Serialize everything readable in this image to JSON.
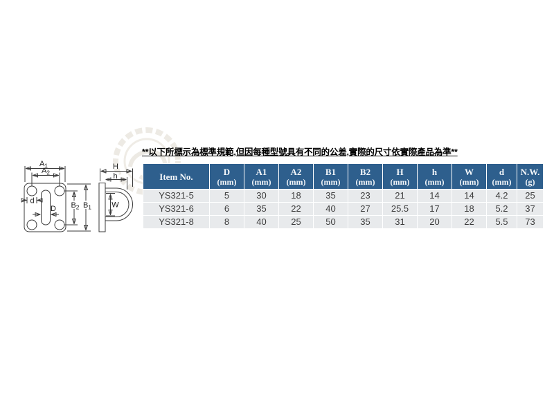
{
  "colors": {
    "header_bg": "#2e5f8d",
    "header_text": "#f4f7fa",
    "row_bg": "#e8eaec",
    "grid": "#ffffff",
    "cell_text": "#3c3c3c",
    "notice_text": "#000000",
    "diagram_line": "#3a3a3a",
    "watermark": "#e9e5de"
  },
  "notice": {
    "text": "**以下所標示為標準規範,但因每種型號具有不同的公差,實際的尺寸依實際產品為準**"
  },
  "table": {
    "columns": [
      {
        "line1": "Item No.",
        "line2": ""
      },
      {
        "line1": "D",
        "line2": "(mm)"
      },
      {
        "line1": "A1",
        "line2": "(mm)"
      },
      {
        "line1": "A2",
        "line2": "(mm)"
      },
      {
        "line1": "B1",
        "line2": "(mm)"
      },
      {
        "line1": "B2",
        "line2": "(mm)"
      },
      {
        "line1": "H",
        "line2": "(mm)"
      },
      {
        "line1": "h",
        "line2": "(mm)"
      },
      {
        "line1": "W",
        "line2": "(mm)"
      },
      {
        "line1": "d",
        "line2": "(mm)"
      },
      {
        "line1": "N.W.",
        "line2": "(g)"
      }
    ],
    "rows": [
      {
        "cells": [
          "YS321-5",
          "5",
          "30",
          "18",
          "35",
          "23",
          "21",
          "14",
          "14",
          "4.2",
          "25"
        ]
      },
      {
        "cells": [
          "YS321-6",
          "6",
          "35",
          "22",
          "40",
          "27",
          "25.5",
          "17",
          "18",
          "5.2",
          "37"
        ]
      },
      {
        "cells": [
          "YS321-8",
          "8",
          "40",
          "25",
          "50",
          "35",
          "31",
          "20",
          "22",
          "5.5",
          "73"
        ]
      }
    ]
  },
  "diagram": {
    "labels": {
      "a1_main": "A",
      "a1_sub": "1",
      "a2_main": "A",
      "a2_sub": "2",
      "b1_main": "B",
      "b1_sub": "1",
      "b2_main": "B",
      "b2_sub": "2",
      "d_small": "d",
      "d_large": "D",
      "h_large": "H",
      "h_small": "h",
      "w": "W"
    }
  }
}
